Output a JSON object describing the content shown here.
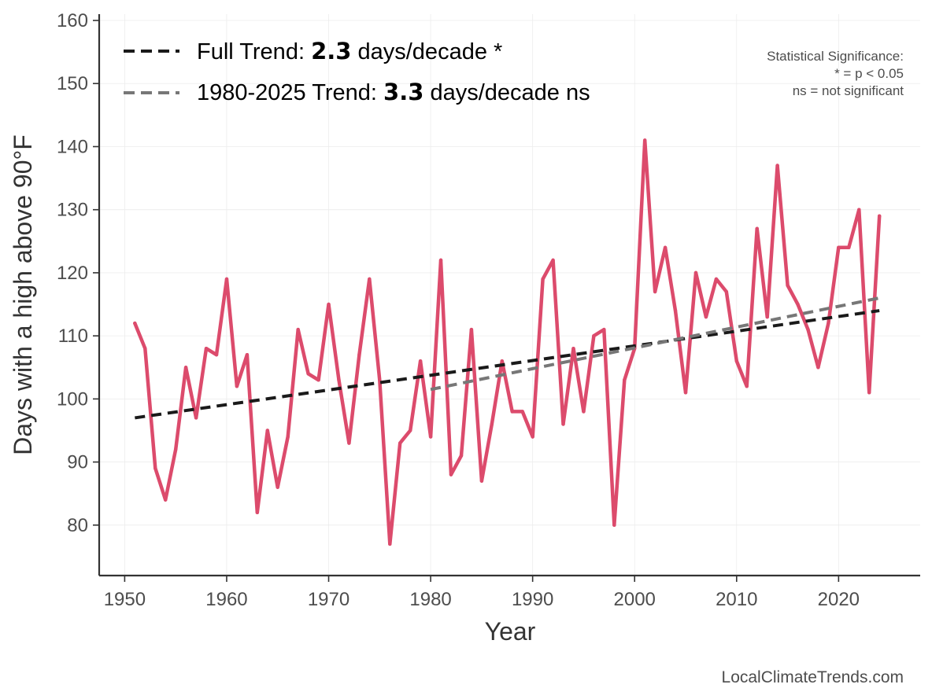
{
  "chart_data": {
    "type": "line",
    "xlabel": "Year",
    "ylabel": "Days with a high above 90°F",
    "xlim": [
      1947.5,
      2028
    ],
    "ylim": [
      72,
      161
    ],
    "x_ticks": [
      1950,
      1960,
      1970,
      1980,
      1990,
      2000,
      2010,
      2020
    ],
    "y_ticks": [
      80,
      90,
      100,
      110,
      120,
      130,
      140,
      150,
      160
    ],
    "grid": true,
    "series": [
      {
        "color": "#dc4b6c",
        "x": [
          1951,
          1952,
          1953,
          1954,
          1955,
          1956,
          1957,
          1958,
          1959,
          1960,
          1961,
          1962,
          1963,
          1964,
          1965,
          1966,
          1967,
          1968,
          1969,
          1970,
          1971,
          1972,
          1973,
          1974,
          1975,
          1976,
          1977,
          1978,
          1979,
          1980,
          1981,
          1982,
          1983,
          1984,
          1985,
          1986,
          1987,
          1988,
          1989,
          1990,
          1991,
          1992,
          1993,
          1994,
          1995,
          1996,
          1997,
          1998,
          1999,
          2000,
          2001,
          2002,
          2003,
          2004,
          2005,
          2006,
          2007,
          2008,
          2009,
          2010,
          2011,
          2012,
          2013,
          2014,
          2015,
          2016,
          2017,
          2018,
          2019,
          2020,
          2021,
          2022,
          2023,
          2024
        ],
        "y": [
          112,
          108,
          89,
          84,
          92,
          105,
          97,
          108,
          107,
          119,
          102,
          107,
          82,
          95,
          86,
          94,
          111,
          104,
          103,
          115,
          103,
          93,
          107,
          119,
          103,
          77,
          93,
          95,
          106,
          94,
          122,
          88,
          91,
          111,
          87,
          96,
          106,
          98,
          98,
          94,
          119,
          122,
          96,
          108,
          98,
          110,
          111,
          80,
          103,
          108,
          141,
          117,
          124,
          114,
          101,
          120,
          113,
          119,
          117,
          106,
          102,
          127,
          113,
          137,
          118,
          115,
          111,
          105,
          112,
          124,
          124,
          130,
          101,
          129
        ]
      }
    ],
    "trends": [
      {
        "label_prefix": "Full Trend: ",
        "label_value": "2.3",
        "label_suffix": " days/decade *",
        "color": "#1a1a1a",
        "x": [
          1951,
          2024
        ],
        "y": [
          97.0,
          114.0
        ]
      },
      {
        "label_prefix": "1980-2025 Trend: ",
        "label_value": "3.3",
        "label_suffix": " days/decade ns",
        "color": "#777777",
        "x": [
          1980,
          2024
        ],
        "y": [
          101.5,
          116.0
        ]
      }
    ],
    "legend_position": "top-left",
    "significance_note": [
      "Statistical Significance:",
      "* = p < 0.05",
      "ns = not significant"
    ],
    "credit": "LocalClimateTrends.com"
  }
}
